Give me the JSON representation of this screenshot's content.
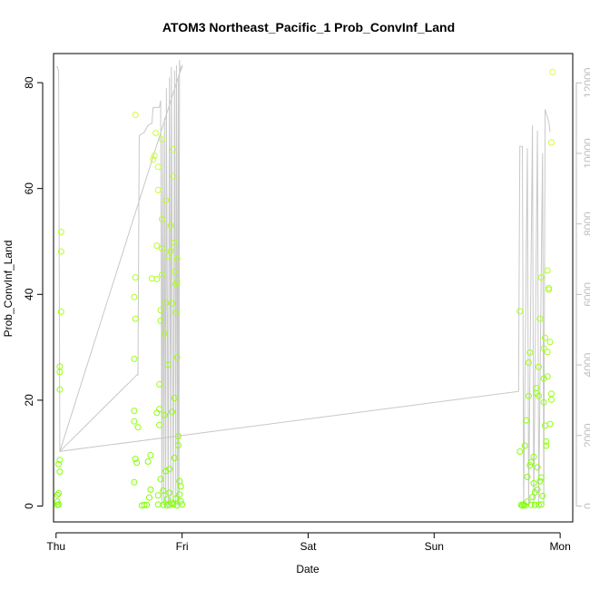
{
  "chart_data": {
    "type": "scatter",
    "title": "ATOM3 Northeast_Pacific_1 Prob_ConvInf_Land",
    "xlabel": "Date",
    "ylabel": "Prob_ConvInf_Land",
    "x_ticks": [
      "Thu",
      "Fri",
      "Sat",
      "Sun",
      "Mon"
    ],
    "xlim": [
      -0.02,
      4.1
    ],
    "ylim": [
      -3,
      85.5
    ],
    "y_ticks": [
      0,
      20,
      40,
      60,
      80
    ],
    "secondary_axis": {
      "color": "#bfbfbf",
      "ylim": [
        -450,
        12830
      ],
      "ticks": [
        0,
        2000,
        4000,
        6000,
        8000,
        10000,
        12000
      ]
    },
    "grid": false,
    "point_color_low": "#7fff00",
    "point_color_high": "#dfff40",
    "line_color": "#c8c8c8",
    "series": [
      {
        "kind": "points",
        "axis": "left",
        "points": [
          [
            0.01,
            0.2
          ],
          [
            0.01,
            0.8
          ],
          [
            0.01,
            2.1
          ],
          [
            0.02,
            2.4
          ],
          [
            0.02,
            0.3
          ],
          [
            0.02,
            7.9
          ],
          [
            0.03,
            8.7
          ],
          [
            0.03,
            6.5
          ],
          [
            0.03,
            26.4
          ],
          [
            0.03,
            25.3
          ],
          [
            0.03,
            22.0
          ],
          [
            0.04,
            36.7
          ],
          [
            0.04,
            48.1
          ],
          [
            0.04,
            51.8
          ],
          [
            0.62,
            27.8
          ],
          [
            0.62,
            39.5
          ],
          [
            0.63,
            43.2
          ],
          [
            0.63,
            35.4
          ],
          [
            0.63,
            73.9
          ],
          [
            0.62,
            18.0
          ],
          [
            0.62,
            16.0
          ],
          [
            0.62,
            4.5
          ],
          [
            0.63,
            8.9
          ],
          [
            0.64,
            8.2
          ],
          [
            0.65,
            14.9
          ],
          [
            0.68,
            0.1
          ],
          [
            0.7,
            0.2
          ],
          [
            0.72,
            0.2
          ],
          [
            0.73,
            8.4
          ],
          [
            0.74,
            1.6
          ],
          [
            0.75,
            3.1
          ],
          [
            0.75,
            9.6
          ],
          [
            0.76,
            43.0
          ],
          [
            0.77,
            65.5
          ],
          [
            0.78,
            66.2
          ],
          [
            0.79,
            70.5
          ],
          [
            0.8,
            42.9
          ],
          [
            0.8,
            49.2
          ],
          [
            0.8,
            17.6
          ],
          [
            0.81,
            64.1
          ],
          [
            0.81,
            59.7
          ],
          [
            0.81,
            2.0
          ],
          [
            0.81,
            0.3
          ],
          [
            0.82,
            23.0
          ],
          [
            0.82,
            15.3
          ],
          [
            0.82,
            18.3
          ],
          [
            0.83,
            35.0
          ],
          [
            0.83,
            37.0
          ],
          [
            0.83,
            5.1
          ],
          [
            0.84,
            69.3
          ],
          [
            0.84,
            54.2
          ],
          [
            0.84,
            48.7
          ],
          [
            0.84,
            43.7
          ],
          [
            0.85,
            0.2
          ],
          [
            0.85,
            2.9
          ],
          [
            0.86,
            17.2
          ],
          [
            0.86,
            32.6
          ],
          [
            0.87,
            57.8
          ],
          [
            0.87,
            38.4
          ],
          [
            0.87,
            6.6
          ],
          [
            0.88,
            0.1
          ],
          [
            0.88,
            1.3
          ],
          [
            0.89,
            26.7
          ],
          [
            0.89,
            47.2
          ],
          [
            0.9,
            0.2
          ],
          [
            0.9,
            2.5
          ],
          [
            0.9,
            7.0
          ],
          [
            0.91,
            48.2
          ],
          [
            0.91,
            53.0
          ],
          [
            0.92,
            38.3
          ],
          [
            0.92,
            17.8
          ],
          [
            0.92,
            0.5
          ],
          [
            0.93,
            67.4
          ],
          [
            0.93,
            62.3
          ],
          [
            0.93,
            0.3
          ],
          [
            0.94,
            49.8
          ],
          [
            0.94,
            44.3
          ],
          [
            0.94,
            20.4
          ],
          [
            0.94,
            9.1
          ],
          [
            0.95,
            36.5
          ],
          [
            0.95,
            41.9
          ],
          [
            0.95,
            1.4
          ],
          [
            0.96,
            46.7
          ],
          [
            0.96,
            42.4
          ],
          [
            0.96,
            28.1
          ],
          [
            0.96,
            0.1
          ],
          [
            0.97,
            13.2
          ],
          [
            0.97,
            11.5
          ],
          [
            0.98,
            4.7
          ],
          [
            0.98,
            2.2
          ],
          [
            0.99,
            3.7
          ],
          [
            0.99,
            0.9
          ],
          [
            1.0,
            0.3
          ],
          [
            3.68,
            36.8
          ],
          [
            3.68,
            10.3
          ],
          [
            3.69,
            0.2
          ],
          [
            3.7,
            0.1
          ],
          [
            3.71,
            0.3
          ],
          [
            3.72,
            0.1
          ],
          [
            3.72,
            11.4
          ],
          [
            3.73,
            16.2
          ],
          [
            3.74,
            5.5
          ],
          [
            3.74,
            0.8
          ],
          [
            3.75,
            20.8
          ],
          [
            3.75,
            27.1
          ],
          [
            3.76,
            29.0
          ],
          [
            3.76,
            7.7
          ],
          [
            3.77,
            8.3
          ],
          [
            3.77,
            0.2
          ],
          [
            3.78,
            1.7
          ],
          [
            3.79,
            9.3
          ],
          [
            3.79,
            4.3
          ],
          [
            3.8,
            0.2
          ],
          [
            3.8,
            2.6
          ],
          [
            3.81,
            21.3
          ],
          [
            3.81,
            22.3
          ],
          [
            3.82,
            3.1
          ],
          [
            3.82,
            7.3
          ],
          [
            3.83,
            26.3
          ],
          [
            3.83,
            20.8
          ],
          [
            3.83,
            0.2
          ],
          [
            3.84,
            35.4
          ],
          [
            3.84,
            4.7
          ],
          [
            3.85,
            5.4
          ],
          [
            3.85,
            0.3
          ],
          [
            3.85,
            43.2
          ],
          [
            3.86,
            1.9
          ],
          [
            3.87,
            24.1
          ],
          [
            3.87,
            19.6
          ],
          [
            3.87,
            29.8
          ],
          [
            3.88,
            31.8
          ],
          [
            3.88,
            15.2
          ],
          [
            3.89,
            11.4
          ],
          [
            3.89,
            12.2
          ],
          [
            3.9,
            24.5
          ],
          [
            3.9,
            29.1
          ],
          [
            3.9,
            44.5
          ],
          [
            3.91,
            40.9
          ],
          [
            3.91,
            41.2
          ],
          [
            3.92,
            31.0
          ],
          [
            3.92,
            15.5
          ],
          [
            3.93,
            20.1
          ],
          [
            3.93,
            21.2
          ],
          [
            3.93,
            68.7
          ],
          [
            3.94,
            82.0
          ]
        ]
      },
      {
        "kind": "line",
        "axis": "right",
        "points": [
          [
            0.0,
            12450
          ],
          [
            0.01,
            12450
          ],
          [
            0.01,
            12450
          ],
          [
            0.02,
            12350
          ],
          [
            0.03,
            1550
          ],
          [
            1.0,
            12500
          ],
          [
            1.0,
            12450
          ],
          [
            0.985,
            12300
          ],
          [
            0.98,
            12650
          ],
          [
            0.975,
            0
          ],
          [
            0.97,
            12150
          ],
          [
            0.965,
            0
          ],
          [
            0.955,
            12500
          ],
          [
            0.95,
            0
          ],
          [
            0.94,
            12350
          ],
          [
            0.93,
            0
          ],
          [
            0.915,
            12450
          ],
          [
            0.91,
            0
          ],
          [
            0.9,
            12150
          ],
          [
            0.89,
            0
          ],
          [
            0.875,
            11850
          ],
          [
            0.87,
            0
          ],
          [
            0.86,
            11000
          ],
          [
            0.855,
            0
          ],
          [
            0.845,
            10450
          ],
          [
            0.84,
            0
          ],
          [
            0.83,
            11500
          ],
          [
            0.82,
            11300
          ],
          [
            0.77,
            11300
          ],
          [
            0.76,
            10850
          ],
          [
            0.73,
            10800
          ],
          [
            0.7,
            10600
          ],
          [
            0.66,
            10500
          ],
          [
            0.65,
            3700
          ],
          [
            0.65,
            3750
          ],
          [
            0.03,
            1550
          ],
          [
            3.67,
            3250
          ],
          [
            3.68,
            10200
          ],
          [
            3.7,
            10200
          ],
          [
            3.71,
            0
          ],
          [
            3.74,
            10150
          ],
          [
            3.75,
            0
          ],
          [
            3.78,
            10800
          ],
          [
            3.79,
            0
          ],
          [
            3.82,
            10650
          ],
          [
            3.83,
            0
          ],
          [
            3.86,
            10000
          ],
          [
            3.87,
            0
          ],
          [
            3.88,
            11250
          ],
          [
            3.91,
            10900
          ],
          [
            3.92,
            10600
          ]
        ]
      }
    ]
  }
}
